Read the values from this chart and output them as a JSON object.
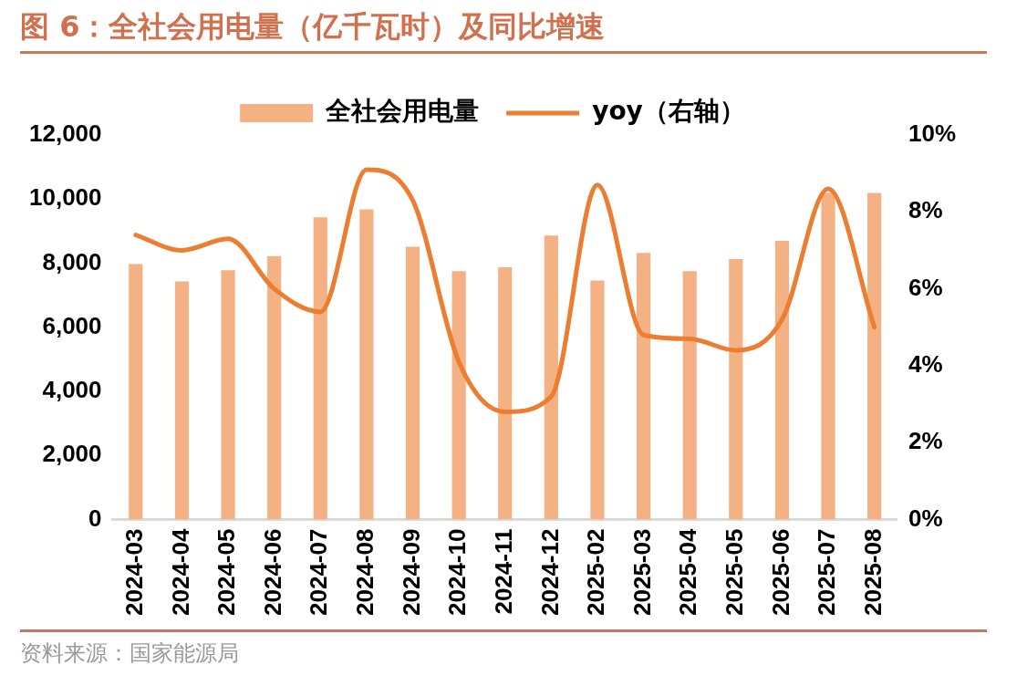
{
  "chart_data": {
    "type": "bar",
    "title": "图 6：全社会用电量（亿千瓦时）及同比增速",
    "categories": [
      "2024-03",
      "2024-04",
      "2024-05",
      "2024-06",
      "2024-07",
      "2024-08",
      "2024-09",
      "2024-10",
      "2024-11",
      "2024-12",
      "2025-02",
      "2025-03",
      "2025-04",
      "2025-05",
      "2025-06",
      "2025-07",
      "2025-08"
    ],
    "series": [
      {
        "name": "全社会用电量",
        "color": "#f4b183",
        "values": [
          7970,
          7430,
          7780,
          8220,
          9430,
          9680,
          8510,
          7750,
          7870,
          8860,
          7460,
          8320,
          7750,
          8130,
          8700,
          10200,
          10190
        ]
      },
      {
        "name": "yoy（右轴）",
        "type": "line",
        "axis": "y2",
        "color": "#ed7d31",
        "values": [
          7.4,
          7.0,
          7.3,
          6.0,
          5.4,
          9.1,
          8.3,
          4.1,
          2.8,
          3.2,
          8.7,
          4.8,
          4.7,
          4.4,
          5.2,
          8.6,
          5.0
        ]
      }
    ],
    "ylim": [
      0,
      12000
    ],
    "yticks": [
      0,
      {
        "value": 2000,
        "label": "2,000"
      },
      {
        "value": 4000,
        "label": "4,000"
      },
      {
        "value": 6000,
        "label": "6,000"
      },
      {
        "value": 8000,
        "label": "8,000"
      },
      {
        "value": 10000,
        "label": "10,000"
      },
      {
        "value": 12000,
        "label": "12,000"
      }
    ],
    "y2lim": [
      0,
      10
    ],
    "y2ticks": [
      {
        "value": 0,
        "label": "0%"
      },
      {
        "value": 2,
        "label": "2%"
      },
      {
        "value": 4,
        "label": "4%"
      },
      {
        "value": 6,
        "label": "6%"
      },
      {
        "value": 8,
        "label": "8%"
      },
      {
        "value": 10,
        "label": "10%"
      }
    ],
    "legend": "top",
    "grid": false,
    "marker": "none",
    "line_style": "solid",
    "annotations": [
      "资料来源：国家能源局"
    ]
  }
}
